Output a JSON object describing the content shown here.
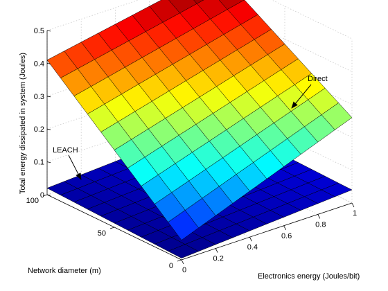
{
  "chart_data": {
    "type": "surface3d",
    "title": "",
    "xlabel": "Electronics energy (Joules/bit)",
    "ylabel": "Network diameter (m)",
    "zlabel": "Total energy dissipated in system (Joules)",
    "x_ticks": [
      "0",
      "0.2",
      "0.4",
      "0.6",
      "0.8",
      "1"
    ],
    "y_ticks": [
      "0",
      "50",
      "100"
    ],
    "z_ticks": [
      "0",
      "0.1",
      "0.2",
      "0.3",
      "0.4",
      "0.5"
    ],
    "xlim": [
      0,
      1
    ],
    "ylim": [
      0,
      100
    ],
    "zlim": [
      0,
      0.5
    ],
    "grid": true,
    "series": [
      {
        "name": "Direct",
        "color": "#ff0000",
        "grid_size": [
          10,
          10
        ],
        "corner_values": {
          "x0_y0": 0.06,
          "x1_y0": 0.26,
          "x0_y100": 0.41,
          "x1_y100": 0.51
        }
      },
      {
        "name": "LEACH",
        "color": "#0000c0",
        "grid_size": [
          10,
          10
        ],
        "corner_values": {
          "x0_y0": 0.005,
          "x1_y0": 0.04,
          "x0_y100": 0.02,
          "x1_y100": 0.05
        }
      }
    ],
    "annotations": [
      {
        "text": "Direct",
        "points_to": "Direct"
      },
      {
        "text": "LEACH",
        "points_to": "LEACH"
      }
    ]
  }
}
